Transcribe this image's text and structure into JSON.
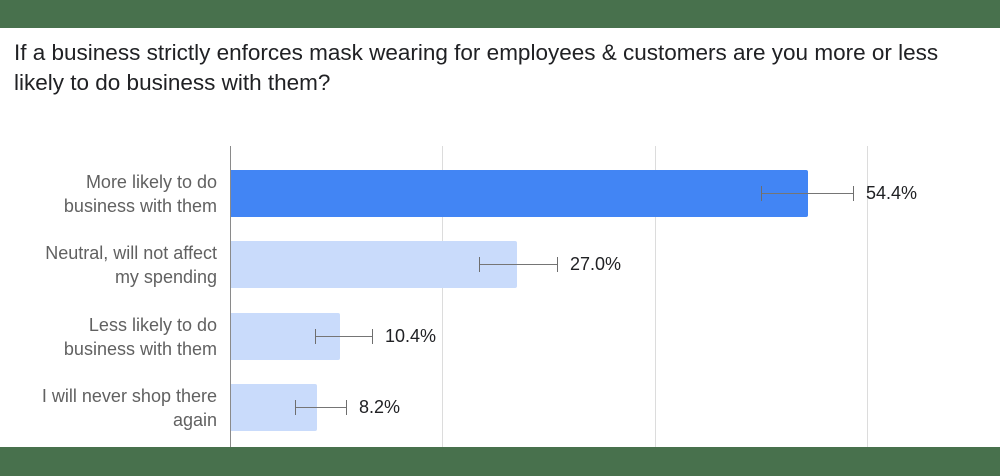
{
  "title": "If a business strictly enforces mask wearing for employees & customers are you more or less likely to do business with them?",
  "colors": {
    "band": "#48714d",
    "highlight_bar": "#4285f4",
    "bar": "#c9dbfb",
    "error_bar": "#757575"
  },
  "chart_data": {
    "type": "bar",
    "orientation": "horizontal",
    "title": "If a business strictly enforces mask wearing for employees & customers are you more or less likely to do business with them?",
    "categories": [
      "More likely to do business with them",
      "Neutral, will not affect my spending",
      "Less likely to do business with them",
      "I will never shop there again"
    ],
    "values": [
      54.4,
      27.0,
      10.4,
      8.2
    ],
    "value_labels": [
      "54.4%",
      "27.0%",
      "10.4%",
      "8.2%"
    ],
    "error_bars": [
      {
        "low": 50.0,
        "high": 58.8
      },
      {
        "low": 23.4,
        "high": 30.9
      },
      {
        "low": 8.0,
        "high": 13.5
      },
      {
        "low": 6.1,
        "high": 11.0
      }
    ],
    "highlighted_index": 0,
    "xlabel": "",
    "ylabel": "",
    "xlim": [
      0,
      80
    ],
    "x_gridlines": [
      0,
      20,
      40,
      60
    ],
    "x_tick_labels_visible": false,
    "grid": true,
    "legend": "none"
  },
  "rows": [
    {
      "label": "More likely to do\nbusiness with them",
      "value_label": "54.4%"
    },
    {
      "label": "Neutral, will not affect\nmy spending",
      "value_label": "27.0%"
    },
    {
      "label": "Less likely to do\nbusiness with them",
      "value_label": "10.4%"
    },
    {
      "label": "I will never shop there\nagain",
      "value_label": "8.2%"
    }
  ]
}
